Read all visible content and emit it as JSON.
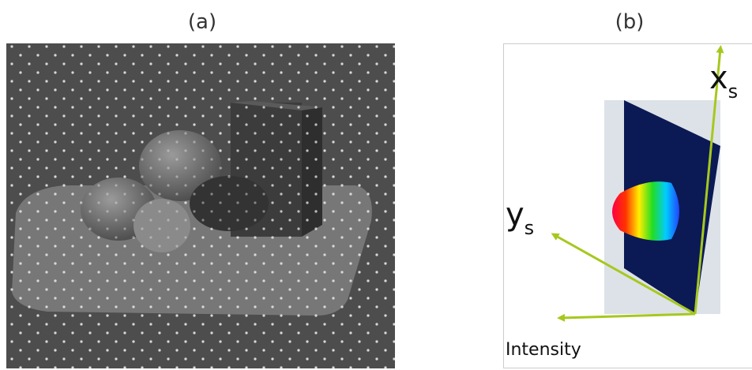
{
  "panels": [
    {
      "label": "(a)"
    },
    {
      "label": "(b)",
      "x_axis": {
        "name": "x",
        "sub": "s"
      },
      "y_axis": {
        "name": "y",
        "sub": "s"
      },
      "intensity_axis": "Intensity"
    }
  ]
}
